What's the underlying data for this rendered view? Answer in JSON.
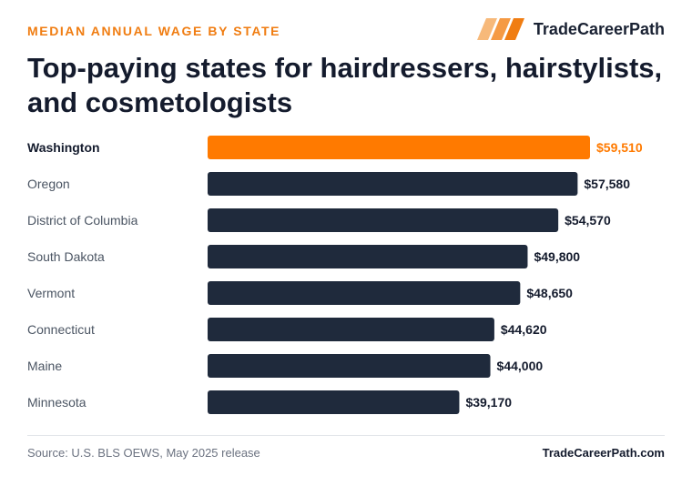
{
  "header": {
    "eyebrow": "MEDIAN ANNUAL WAGE BY STATE",
    "brand_name": "TradeCareerPath",
    "title": "Top-paying states for hairdressers, hairstylists, and cosmetologists"
  },
  "colors": {
    "accent": "#ff7a00",
    "bar": "#1f2a3c",
    "label": "#4b5563",
    "value": "#141b2d"
  },
  "chart_data": {
    "type": "bar",
    "orientation": "horizontal",
    "categories": [
      "Washington",
      "Oregon",
      "District of Columbia",
      "South Dakota",
      "Vermont",
      "Connecticut",
      "Maine",
      "Minnesota"
    ],
    "values": [
      59510,
      57580,
      54570,
      49800,
      48650,
      44620,
      44000,
      39170
    ],
    "value_labels": [
      "$59,510",
      "$57,580",
      "$54,570",
      "$49,800",
      "$48,650",
      "$44,620",
      "$44,000",
      "$39,170"
    ],
    "highlight": "Washington",
    "xlim": [
      0,
      59510
    ],
    "grid": false
  },
  "footer": {
    "source": "Source: U.S. BLS OEWS, May 2025 release",
    "site": "TradeCareerPath.com"
  }
}
